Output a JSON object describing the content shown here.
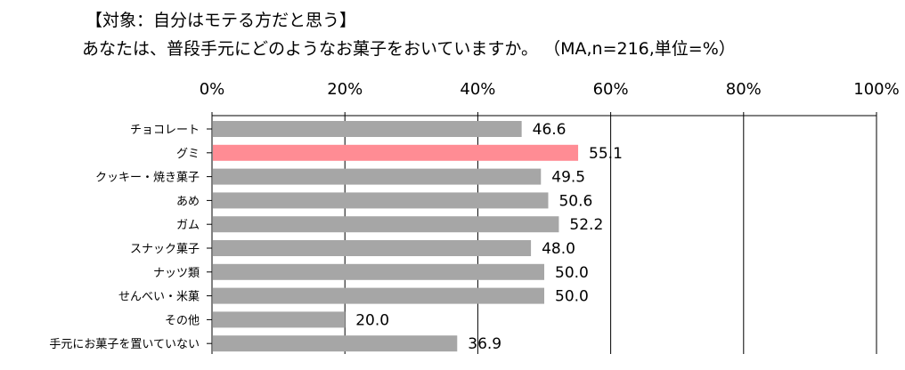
{
  "title": {
    "line1": "【対象：自分はモテる方だと思う】",
    "line2": "あなたは、普段手元にどのようなお菓子をおいていますか。 （MA,n=216,単位=%）"
  },
  "chart_data": {
    "type": "bar",
    "orientation": "horizontal",
    "categories": [
      "チョコレート",
      "グミ",
      "クッキー・焼き菓子",
      "あめ",
      "ガム",
      "スナック菓子",
      "ナッツ類",
      "せんべい・米菓",
      "その他",
      "手元にお菓子を置いていない"
    ],
    "values": [
      46.6,
      55.1,
      49.5,
      50.6,
      52.2,
      48.0,
      50.0,
      50.0,
      20.0,
      36.9
    ],
    "value_labels": [
      "46.6",
      "55.1",
      "49.5",
      "50.6",
      "52.2",
      "48.0",
      "50.0",
      "50.0",
      "20.0",
      "36.9"
    ],
    "xlim": [
      0,
      100
    ],
    "xticks": [
      "0%",
      "20%",
      "40%",
      "60%",
      "80%",
      "100%"
    ],
    "axis_position": "top",
    "grid": true,
    "colors": {
      "bar": "#a6a6a6",
      "highlight": "#ff8c94",
      "grid": "#000000"
    },
    "highlight_index": 1
  }
}
